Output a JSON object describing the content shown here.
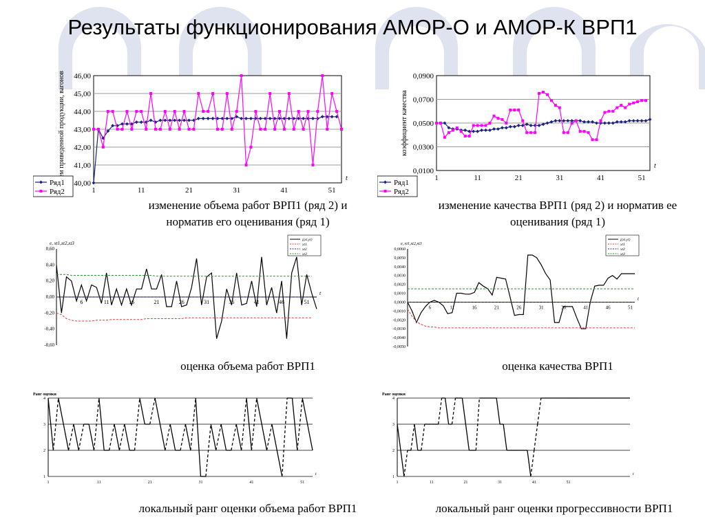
{
  "slide": {
    "title": "Результаты функционирования АМОР-О и АМОР-К ВРП1"
  },
  "colors": {
    "series1": "#1a237e",
    "series2": "#ff00ff",
    "band_green": "#2e8b2e",
    "band_red": "#e53935",
    "background_arch": "#dfe3ef"
  },
  "captions": {
    "c1": "изменение объема работ ВРП1 (ряд 2) и норматив его оценивания (ряд 1)",
    "c2": "изменение качества ВРП1 (ряд 2) и норматив ее оценивания (ряд 1)",
    "c3": "оценка объема работ ВРП1",
    "c4": "оценка качества ВРП1",
    "c5": "локальный ранг оценки объема работ ВРП1",
    "c6": "локальный ранг оценки прогрессивности ВРП1"
  },
  "chart_data": [
    {
      "id": "volume",
      "type": "line",
      "ylabel": "объем приведенной продукции, вагонов",
      "xlabel": "t",
      "ylim": [
        40,
        46
      ],
      "y_ticks": [
        "40,00",
        "41,00",
        "42,00",
        "43,00",
        "44,00",
        "45,00",
        "46,00"
      ],
      "x_ticks": [
        "1",
        "11",
        "21",
        "31",
        "41",
        "51"
      ],
      "legend": {
        "position": "bottom-left",
        "entries": [
          "Ряд1",
          "Ряд2"
        ]
      },
      "grid": true,
      "series": [
        {
          "name": "Ряд1",
          "marker": "diamond",
          "values": [
            40.0,
            43.0,
            42.5,
            42.9,
            43.2,
            43.2,
            43.3,
            43.3,
            43.3,
            43.4,
            43.4,
            43.4,
            43.5,
            43.4,
            43.5,
            43.5,
            43.5,
            43.5,
            43.5,
            43.5,
            43.5,
            43.5,
            43.6,
            43.6,
            43.6,
            43.6,
            43.6,
            43.6,
            43.6,
            43.6,
            43.7,
            43.6,
            43.6,
            43.6,
            43.6,
            43.6,
            43.6,
            43.6,
            43.6,
            43.6,
            43.6,
            43.6,
            43.6,
            43.6,
            43.6,
            43.6,
            43.6,
            43.6,
            43.7,
            43.7,
            43.7,
            43.7
          ]
        },
        {
          "name": "Ряд2",
          "marker": "square",
          "values": [
            43.0,
            43.0,
            42.0,
            44.0,
            44.0,
            43.0,
            43.0,
            44.0,
            43.0,
            44.0,
            44.0,
            43.0,
            45.0,
            43.0,
            43.0,
            44.0,
            43.0,
            44.0,
            43.0,
            44.0,
            43.0,
            43.0,
            45.0,
            44.0,
            44.0,
            45.0,
            43.0,
            43.0,
            45.0,
            43.0,
            44.0,
            46.0,
            41.0,
            42.0,
            44.0,
            43.0,
            43.0,
            45.0,
            43.0,
            44.0,
            43.0,
            45.0,
            43.0,
            44.0,
            43.0,
            44.0,
            41.0,
            44.0,
            46.0,
            43.0,
            45.0,
            44.0,
            43.0
          ]
        }
      ]
    },
    {
      "id": "quality",
      "type": "line",
      "ylabel": "коэффициент качества",
      "xlabel": "t",
      "ylim": [
        0.01,
        0.09
      ],
      "y_ticks": [
        "0,0100",
        "0,0300",
        "0,0500",
        "0,0700",
        "0,0900"
      ],
      "x_ticks": [
        "1",
        "11",
        "21",
        "31",
        "41",
        "51"
      ],
      "legend": {
        "position": "bottom-left",
        "entries": [
          "Ряд1",
          "Ряд2"
        ]
      },
      "grid": true,
      "series": [
        {
          "name": "Ряд1",
          "marker": "diamond",
          "values": [
            0.05,
            0.05,
            0.05,
            0.046,
            0.045,
            0.045,
            0.044,
            0.044,
            0.043,
            0.043,
            0.043,
            0.044,
            0.044,
            0.044,
            0.045,
            0.045,
            0.046,
            0.046,
            0.047,
            0.047,
            0.048,
            0.048,
            0.049,
            0.048,
            0.048,
            0.048,
            0.049,
            0.05,
            0.051,
            0.052,
            0.052,
            0.052,
            0.052,
            0.052,
            0.052,
            0.052,
            0.051,
            0.051,
            0.051,
            0.05,
            0.05,
            0.05,
            0.05,
            0.05,
            0.051,
            0.051,
            0.051,
            0.052,
            0.052,
            0.052,
            0.052,
            0.052,
            0.053
          ]
        },
        {
          "name": "Ряд2",
          "marker": "square",
          "values": [
            0.05,
            0.05,
            0.038,
            0.042,
            0.044,
            0.046,
            0.043,
            0.039,
            0.039,
            0.048,
            0.048,
            0.048,
            0.048,
            0.05,
            0.056,
            0.054,
            0.053,
            0.05,
            0.061,
            0.061,
            0.061,
            0.052,
            0.042,
            0.042,
            0.042,
            0.075,
            0.076,
            0.074,
            0.069,
            0.065,
            0.063,
            0.042,
            0.042,
            0.05,
            0.052,
            0.043,
            0.043,
            0.042,
            0.036,
            0.036,
            0.052,
            0.059,
            0.06,
            0.06,
            0.063,
            0.065,
            0.063,
            0.066,
            0.067,
            0.068,
            0.069,
            0.069
          ]
        }
      ]
    },
    {
      "id": "volume-estimate",
      "type": "line",
      "title_y": "e, xt1,xt2,xt3",
      "xlabel": "t",
      "ylim": [
        -0.6,
        0.6
      ],
      "y_ticks": [
        "-0,60",
        "-0,40",
        "-0,20",
        "0,00",
        "0,20",
        "0,40",
        "0,60"
      ],
      "x_ticks": [
        "6",
        "11",
        "16",
        "21",
        "26",
        "31",
        "36",
        "41",
        "46",
        "51"
      ],
      "legend": {
        "position": "top-right",
        "entries": [
          "j(xt,yt)",
          "xt1",
          "xt2",
          "xt3"
        ]
      },
      "series": [
        {
          "name": "j(xt,yt)",
          "values": [
            0.4,
            -0.2,
            0.25,
            0.2,
            -0.05,
            0.15,
            -0.05,
            0.15,
            0.12,
            -0.08,
            0.3,
            -0.1,
            0.1,
            -0.1,
            0.1,
            -0.1,
            0.1,
            0.1,
            0.35,
            0.1,
            0.1,
            0.28,
            -0.12,
            -0.12,
            0.2,
            -0.12,
            -0.1,
            0.12,
            0.48,
            -0.1,
            0.25,
            0.3,
            -0.52,
            -0.3,
            0.1,
            -0.1,
            0.3,
            -0.1,
            -0.08,
            0.2,
            -0.12,
            0.5,
            -0.1,
            0.12,
            -0.2,
            0.2,
            -0.52,
            0.3,
            0.5,
            -0.1,
            0.28,
            0.05,
            -0.15
          ]
        },
        {
          "name": "xt1",
          "values": [
            -0.2,
            -0.22,
            -0.27,
            -0.29,
            -0.3,
            -0.3,
            -0.3,
            -0.3,
            -0.29,
            -0.29,
            -0.29,
            -0.28,
            -0.28,
            -0.28,
            -0.28,
            -0.28,
            -0.28,
            -0.28,
            -0.27,
            -0.27,
            -0.27,
            -0.27,
            -0.27,
            -0.27,
            -0.27,
            -0.27,
            -0.26,
            -0.26,
            -0.26,
            -0.26,
            -0.26,
            -0.26,
            -0.26,
            -0.26,
            -0.26,
            -0.26,
            -0.26,
            -0.26,
            -0.26,
            -0.26,
            -0.26,
            -0.26,
            -0.26,
            -0.26,
            -0.26,
            -0.26,
            -0.26,
            -0.26,
            -0.26,
            -0.26,
            -0.26,
            -0.26
          ]
        },
        {
          "name": "xt2",
          "values": [
            0,
            0,
            0,
            0,
            0,
            0,
            0,
            0,
            0,
            0,
            0,
            0,
            0,
            0,
            0,
            0,
            0,
            0,
            0,
            0,
            0,
            0,
            0,
            0,
            0,
            0,
            0,
            0,
            0,
            0,
            0,
            0,
            0,
            0,
            0,
            0,
            0,
            0,
            0,
            0,
            0,
            0,
            0,
            0,
            0,
            0,
            0,
            0,
            0,
            0,
            0,
            0
          ]
        },
        {
          "name": "xt3",
          "values": [
            0.28,
            0.28,
            0.28,
            0.27,
            0.27,
            0.27,
            0.27,
            0.27,
            0.27,
            0.27,
            0.27,
            0.27,
            0.27,
            0.27,
            0.27,
            0.27,
            0.27,
            0.27,
            0.27,
            0.27,
            0.26,
            0.26,
            0.26,
            0.26,
            0.26,
            0.26,
            0.26,
            0.26,
            0.26,
            0.26,
            0.26,
            0.26,
            0.26,
            0.26,
            0.26,
            0.26,
            0.26,
            0.26,
            0.26,
            0.26,
            0.26,
            0.26,
            0.26,
            0.26,
            0.26,
            0.26,
            0.26,
            0.26,
            0.26,
            0.26,
            0.26,
            0.26
          ]
        }
      ]
    },
    {
      "id": "quality-estimate",
      "type": "line",
      "title_y": "e, xt1,xt2,xt3",
      "xlabel": "t",
      "ylim": [
        -0.005,
        0.006
      ],
      "y_ticks": [
        "-0,0050",
        "-0,0040",
        "-0,0030",
        "-0,0020",
        "-0,0010",
        "0,0000",
        "0,0010",
        "0,0020",
        "0,0030",
        "0,0040",
        "0,0050",
        "0,0060"
      ],
      "x_ticks": [
        "6",
        "11",
        "16",
        "21",
        "26",
        "31",
        "36",
        "41",
        "46",
        "51"
      ],
      "legend": {
        "position": "top-right",
        "entries": [
          "j(xt,yt)",
          "xt1",
          "xt2",
          "xt3"
        ]
      },
      "series": [
        {
          "name": "j(xt,yt)",
          "values": [
            0.0,
            -0.001,
            -0.0023,
            -0.0012,
            -0.0005,
            0.0,
            0.0002,
            0.0,
            -0.0004,
            -0.0013,
            -0.0012,
            0.001,
            0.001,
            0.0009,
            0.0009,
            0.0011,
            0.0022,
            0.0018,
            0.0015,
            0.0008,
            0.0028,
            0.0027,
            0.0026,
            0.0006,
            -0.0015,
            -0.0014,
            -0.0014,
            0.0053,
            0.0053,
            0.005,
            0.0042,
            0.0032,
            0.0025,
            -0.0023,
            -0.0023,
            -0.0005,
            -0.0005,
            -0.0005,
            -0.0018,
            -0.003,
            -0.003,
            0.0,
            0.0018,
            0.0019,
            0.0019,
            0.0027,
            0.003,
            0.0026,
            0.0032,
            0.0032,
            0.0032,
            0.0032
          ]
        },
        {
          "name": "xt1",
          "values": [
            -0.0008,
            -0.0016,
            -0.0022,
            -0.0025,
            -0.0027,
            -0.0028,
            -0.0028,
            -0.0029,
            -0.0029,
            -0.0029,
            -0.0029,
            -0.0029,
            -0.0029,
            -0.0029,
            -0.0029,
            -0.0029,
            -0.0029,
            -0.0029,
            -0.0029,
            -0.0029,
            -0.0029,
            -0.0029,
            -0.0029,
            -0.0029,
            -0.0029,
            -0.0029,
            -0.0029,
            -0.0029,
            -0.0029,
            -0.0029,
            -0.0029,
            -0.0029,
            -0.0029,
            -0.0029,
            -0.0029,
            -0.0029,
            -0.0029,
            -0.0029,
            -0.0029,
            -0.0029,
            -0.0029,
            -0.0029,
            -0.0029,
            -0.0029,
            -0.0029,
            -0.0029,
            -0.0029,
            -0.0029,
            -0.0029,
            -0.0029,
            -0.0029,
            -0.0029
          ]
        },
        {
          "name": "xt2",
          "values": [
            0,
            0,
            0,
            0,
            0,
            0,
            0,
            0,
            0,
            0,
            0,
            0,
            0,
            0,
            0,
            0,
            0,
            0,
            0,
            0,
            0,
            0,
            0,
            0,
            0,
            0,
            0,
            0,
            0,
            0,
            0,
            0,
            0,
            0,
            0,
            0,
            0,
            0,
            0,
            0,
            0,
            0,
            0,
            0,
            0,
            0,
            0,
            0,
            0,
            0,
            0,
            0
          ]
        },
        {
          "name": "xt3",
          "values": [
            0.0015,
            0.0015,
            0.0015,
            0.0015,
            0.0015,
            0.0015,
            0.0015,
            0.0015,
            0.0015,
            0.0015,
            0.0015,
            0.0015,
            0.0015,
            0.0015,
            0.0015,
            0.0015,
            0.0015,
            0.0015,
            0.0015,
            0.0015,
            0.0015,
            0.0015,
            0.0015,
            0.0015,
            0.0015,
            0.0015,
            0.0015,
            0.0015,
            0.0015,
            0.0015,
            0.0015,
            0.0015,
            0.0015,
            0.0015,
            0.0015,
            0.0015,
            0.0015,
            0.0015,
            0.0015,
            0.0015,
            0.0015,
            0.0015,
            0.0015,
            0.0015,
            0.0015,
            0.0015,
            0.0015,
            0.0015,
            0.0015,
            0.0015,
            0.0015,
            0.0015
          ]
        }
      ]
    },
    {
      "id": "volume-rank",
      "type": "line",
      "title_y": "Ранг оценки",
      "xlabel": "t",
      "ylim": [
        1,
        4
      ],
      "y_ticks": [
        "1",
        "2",
        "3",
        "4"
      ],
      "x_ticks": [
        "1",
        "11",
        "21",
        "31",
        "41",
        "51"
      ],
      "series": [
        {
          "name": "rank",
          "values": [
            4,
            2,
            4,
            3,
            2,
            3,
            2,
            3,
            3,
            2,
            4,
            2,
            2,
            3,
            2,
            3,
            2,
            2,
            4,
            3,
            3,
            4,
            3,
            2,
            3,
            2,
            2,
            3,
            2,
            4,
            1,
            1,
            3,
            2,
            3,
            2,
            2,
            3,
            2,
            4,
            2,
            4,
            3,
            2,
            3,
            2,
            1,
            4,
            4,
            2,
            4,
            3,
            2
          ]
        }
      ]
    },
    {
      "id": "quality-rank",
      "type": "line",
      "title_y": "Ранг оценки",
      "xlabel": "t",
      "ylim": [
        1,
        4
      ],
      "y_ticks": [
        "1",
        "2",
        "3",
        "4"
      ],
      "x_ticks": [
        "1",
        "11",
        "21",
        "31",
        "41",
        "51"
      ],
      "series": [
        {
          "name": "rank",
          "values": [
            3,
            2,
            1,
            2,
            2,
            3,
            2,
            2,
            3,
            3,
            3,
            3,
            3,
            4,
            4,
            3,
            3,
            4,
            4,
            4,
            3,
            2,
            2,
            2,
            4,
            4,
            4,
            4,
            4,
            4,
            3,
            3,
            2,
            2,
            2,
            2,
            2,
            2,
            2,
            1,
            2,
            3,
            4,
            4,
            4,
            4,
            4,
            4,
            4,
            4,
            4,
            4,
            4,
            4,
            4,
            4,
            4,
            4,
            4,
            4,
            4,
            4,
            4,
            4,
            4,
            4,
            4,
            4,
            4
          ]
        }
      ]
    }
  ]
}
